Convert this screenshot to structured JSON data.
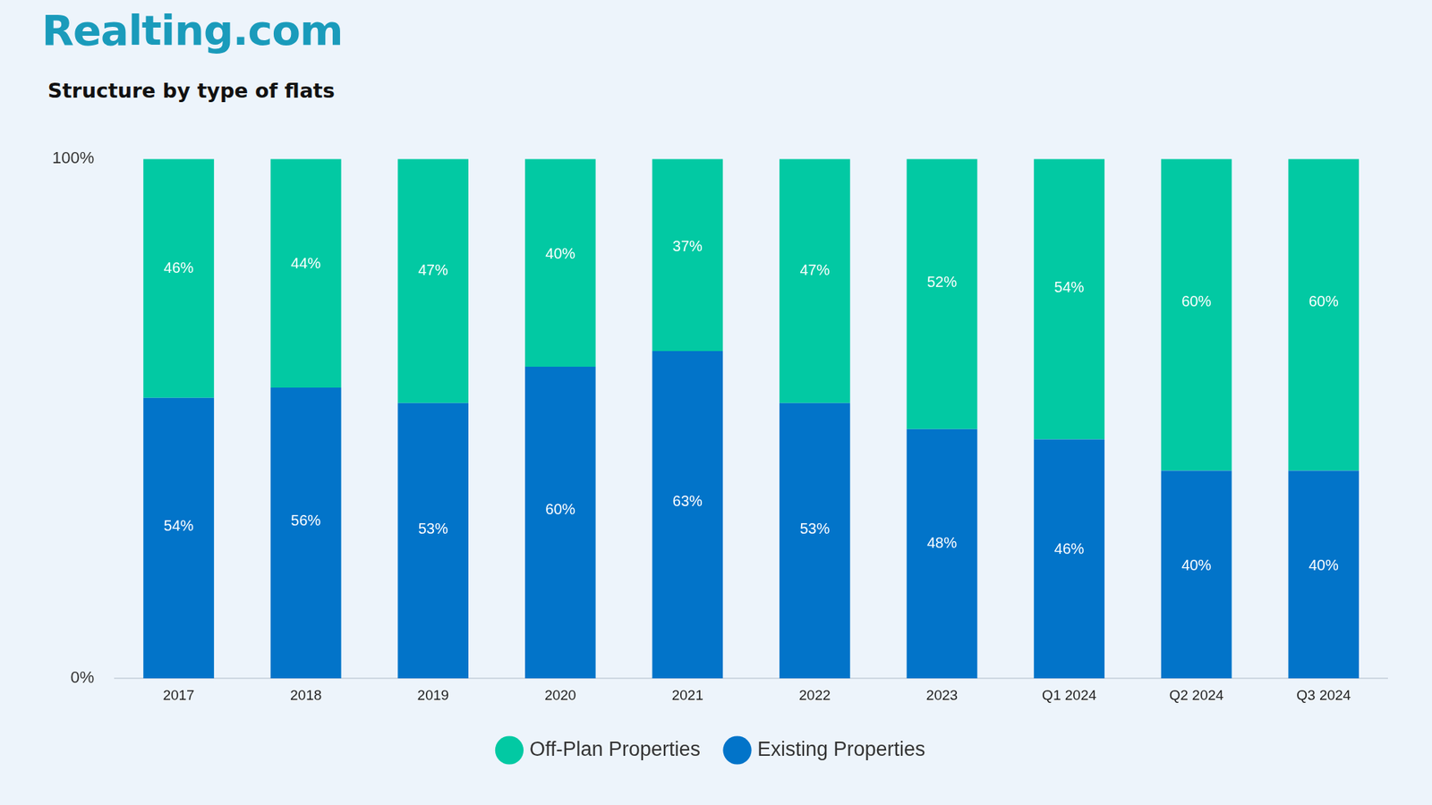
{
  "chart_data": {
    "type": "bar",
    "brand": "Realting.com",
    "title": "Structure by type of flats",
    "categories": [
      "2017",
      "2018",
      "2019",
      "2020",
      "2021",
      "2022",
      "2023",
      "Q1 2024",
      "Q2 2024",
      "Q3 2024"
    ],
    "series": [
      {
        "name": "Off-Plan Properties",
        "color": "#02c9a3",
        "values": [
          46,
          44,
          47,
          40,
          37,
          47,
          52,
          54,
          60,
          60
        ],
        "value_labels": [
          "46%",
          "44%",
          "47%",
          "40%",
          "37%",
          "47%",
          "52%",
          "54%",
          "60%",
          "60%"
        ]
      },
      {
        "name": "Existing Properties",
        "color": "#0274c9",
        "values": [
          54,
          56,
          53,
          60,
          63,
          53,
          48,
          46,
          40,
          40
        ],
        "value_labels": [
          "54%",
          "56%",
          "53%",
          "60%",
          "63%",
          "53%",
          "48%",
          "46%",
          "40%",
          "40%"
        ]
      }
    ],
    "stacked": true,
    "data_labels": true,
    "ylim": [
      0,
      100
    ],
    "yticks": [
      {
        "value": 0,
        "label": "0%"
      },
      {
        "value": 100,
        "label": "100%"
      }
    ],
    "grid": false,
    "legend": "bottom"
  }
}
